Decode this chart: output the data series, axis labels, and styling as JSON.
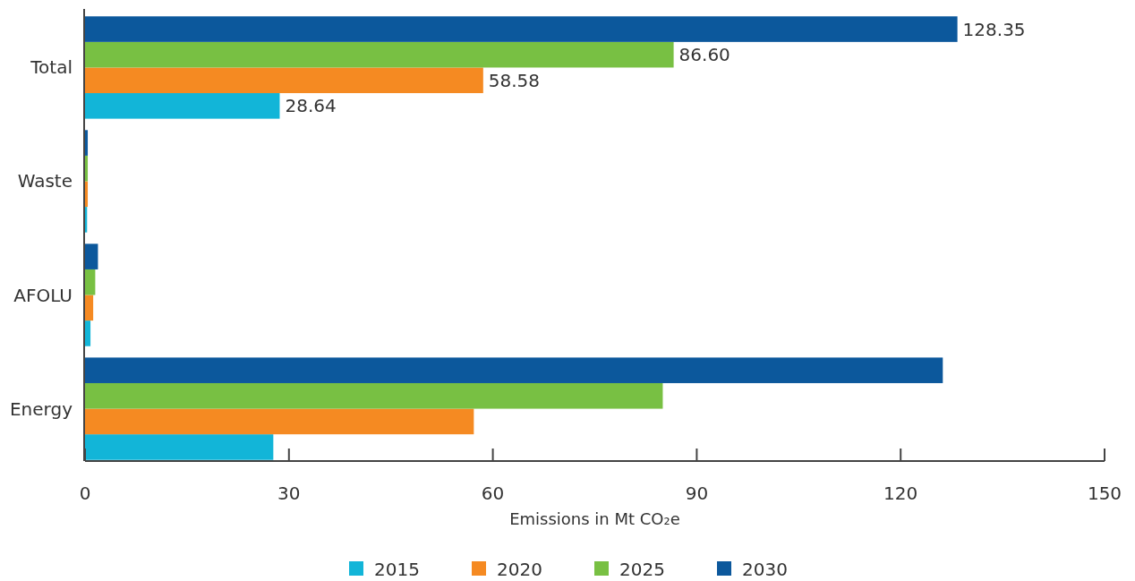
{
  "chart_data": {
    "type": "bar",
    "orientation": "horizontal",
    "xlabel": "Emissions in Mt CO₂e",
    "categories": [
      "Total",
      "Waste",
      "AFOLU",
      "Energy"
    ],
    "xlim": [
      0,
      150
    ],
    "xticks": [
      0,
      30,
      60,
      90,
      120,
      150
    ],
    "legend": "bottom",
    "grid": false,
    "series": [
      {
        "name": "2015",
        "color": "#12b5d8",
        "values": [
          28.64,
          0.3,
          0.8,
          27.7
        ],
        "value_labels": [
          "28.64",
          null,
          null,
          null
        ]
      },
      {
        "name": "2020",
        "color": "#f58a22",
        "values": [
          58.58,
          0.4,
          1.2,
          57.2
        ],
        "value_labels": [
          "58.58",
          null,
          null,
          null
        ]
      },
      {
        "name": "2025",
        "color": "#78c043",
        "values": [
          86.6,
          0.4,
          1.5,
          85.0
        ],
        "value_labels": [
          "86.60",
          null,
          null,
          null
        ]
      },
      {
        "name": "2030",
        "color": "#0c589c",
        "values": [
          128.35,
          0.4,
          1.9,
          126.2
        ],
        "value_labels": [
          "128.35",
          null,
          null,
          null
        ]
      }
    ]
  }
}
